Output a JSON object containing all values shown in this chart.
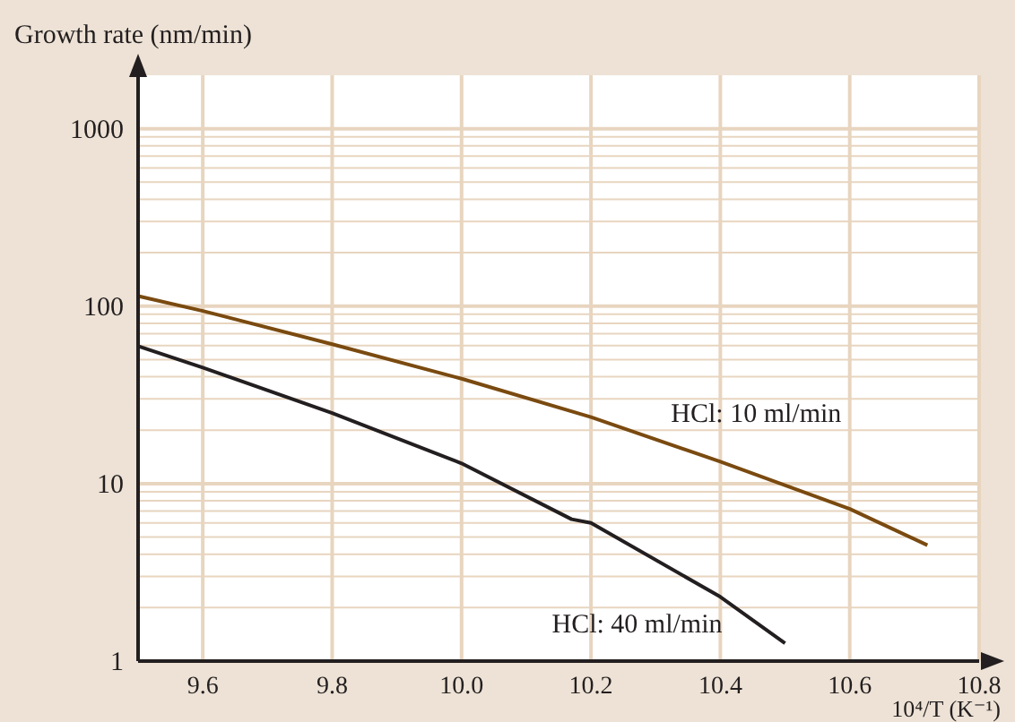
{
  "chart_data": {
    "type": "line",
    "title": "Growth rate (nm/min)",
    "xlabel": "10⁴/T (K⁻¹)",
    "log": "y",
    "grid": true,
    "legend": false,
    "marker": "none",
    "line_style": "solid",
    "xlim": [
      9.5,
      10.8
    ],
    "xticks": [
      9.6,
      9.8,
      "10.0",
      10.2,
      10.4,
      10.6,
      10.8
    ],
    "ylim": [
      1,
      2000
    ],
    "yticks": [
      1,
      {
        "value": 2,
        "label": null
      },
      {
        "value": 3,
        "label": null
      },
      {
        "value": 4,
        "label": null
      },
      {
        "value": 5,
        "label": null
      },
      {
        "value": 6,
        "label": null
      },
      {
        "value": 7,
        "label": null
      },
      {
        "value": 8,
        "label": null
      },
      {
        "value": 9,
        "label": null
      },
      10,
      {
        "value": 20,
        "label": null
      },
      {
        "value": 30,
        "label": null
      },
      {
        "value": 40,
        "label": null
      },
      {
        "value": 50,
        "label": null
      },
      {
        "value": 60,
        "label": null
      },
      {
        "value": 70,
        "label": null
      },
      {
        "value": 80,
        "label": null
      },
      {
        "value": 90,
        "label": null
      },
      100,
      {
        "value": 200,
        "label": null
      },
      {
        "value": 300,
        "label": null
      },
      {
        "value": 400,
        "label": null
      },
      {
        "value": 500,
        "label": null
      },
      {
        "value": 600,
        "label": null
      },
      {
        "value": 700,
        "label": null
      },
      {
        "value": 800,
        "label": null
      },
      {
        "value": 900,
        "label": null
      },
      1000
    ],
    "series": [
      {
        "name": "HCl: 10 ml/min",
        "color": "#7a4a10",
        "x": [
          9.5,
          9.6,
          9.8,
          10.0,
          10.2,
          10.4,
          10.6,
          10.72
        ],
        "values": [
          114,
          94,
          61,
          39,
          23.7,
          13.3,
          7.2,
          4.5
        ]
      },
      {
        "name": "HCl: 40 ml/min",
        "color": "#231f20",
        "x": [
          9.5,
          9.6,
          9.8,
          10.0,
          10.17,
          10.2,
          10.4,
          10.5
        ],
        "values": [
          59.6,
          45,
          25,
          13,
          6.3,
          6.0,
          2.3,
          1.26
        ]
      }
    ]
  }
}
